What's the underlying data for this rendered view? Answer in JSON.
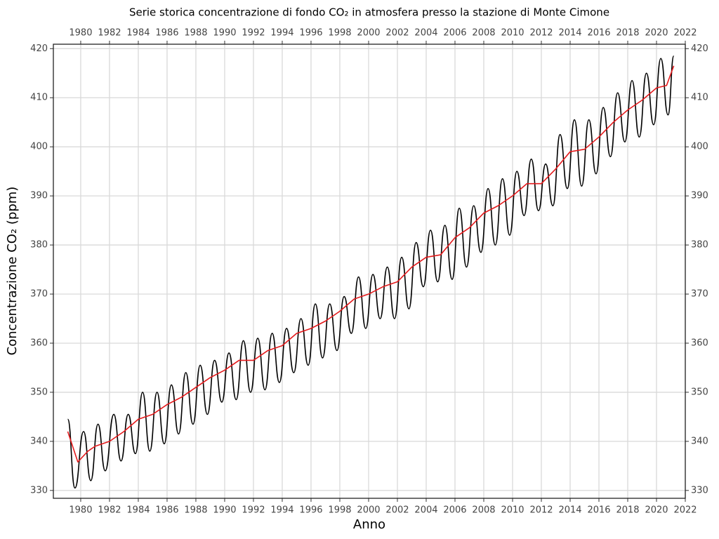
{
  "chart_data": {
    "type": "line",
    "title": "Serie storica concentrazione di fondo CO₂ in atmosfera presso la stazione di Monte Cimone",
    "x_label": "Anno",
    "y_label": "Concentrazione CO₂ (ppm)",
    "xlim": [
      1978.1,
      2022.0
    ],
    "ylim": [
      328.4,
      420.9
    ],
    "xticks": [
      1980,
      1982,
      1984,
      1986,
      1988,
      1990,
      1992,
      1994,
      1996,
      1998,
      2000,
      2002,
      2004,
      2006,
      2008,
      2010,
      2012,
      2014,
      2016,
      2018,
      2020,
      2022
    ],
    "yticks": [
      330,
      340,
      350,
      360,
      370,
      380,
      390,
      400,
      410,
      420
    ],
    "grid": true,
    "series": [
      {
        "color": "#000000",
        "x": [
          1979.1,
          1979.6,
          1980.2,
          1980.7,
          1981.2,
          1981.7,
          1982.3,
          1982.8,
          1983.3,
          1983.8,
          1984.3,
          1984.8,
          1985.3,
          1985.8,
          1986.3,
          1986.8,
          1987.3,
          1987.8,
          1988.3,
          1988.8,
          1989.3,
          1989.8,
          1990.3,
          1990.8,
          1991.3,
          1991.8,
          1992.3,
          1992.8,
          1993.3,
          1993.8,
          1994.3,
          1994.8,
          1995.3,
          1995.8,
          1996.3,
          1996.8,
          1997.3,
          1997.8,
          1998.3,
          1998.8,
          1999.3,
          1999.8,
          2000.3,
          2000.8,
          2001.3,
          2001.8,
          2002.3,
          2002.8,
          2003.3,
          2003.8,
          2004.3,
          2004.8,
          2005.3,
          2005.8,
          2006.3,
          2006.8,
          2007.3,
          2007.8,
          2008.3,
          2008.8,
          2009.3,
          2009.8,
          2010.3,
          2010.8,
          2011.3,
          2011.8,
          2012.3,
          2012.8,
          2013.3,
          2013.8,
          2014.3,
          2014.8,
          2015.3,
          2015.8,
          2016.3,
          2016.8,
          2017.3,
          2017.8,
          2018.3,
          2018.8,
          2019.3,
          2019.8,
          2020.3,
          2020.8,
          2021.2
        ],
        "values": [
          344.5,
          330.5,
          342,
          332,
          343.5,
          334,
          345.5,
          336,
          345.5,
          337.5,
          350,
          338,
          350,
          339.5,
          351.5,
          341.5,
          354,
          343.5,
          355.5,
          345.5,
          356.5,
          348,
          358,
          348.5,
          360.5,
          350,
          361,
          350.5,
          362,
          352,
          363,
          354,
          365,
          355.5,
          368,
          357,
          368,
          358.5,
          369.5,
          362,
          373.5,
          363,
          374,
          365,
          375.5,
          365,
          377.5,
          367,
          380.5,
          371.5,
          383,
          372.5,
          384,
          373,
          387.5,
          375.5,
          388,
          378.5,
          391.5,
          380,
          393.5,
          382,
          395,
          386,
          397.5,
          387,
          396.5,
          388,
          402.5,
          391.5,
          405.5,
          392,
          405.5,
          394.5,
          408,
          398,
          411,
          401,
          413.5,
          402,
          415,
          404.5,
          418,
          406.5,
          418.5
        ]
      },
      {
        "color": "#e41a1c",
        "x": [
          1979.1,
          1979.8,
          1980.5,
          1981,
          1982,
          1983,
          1984,
          1985,
          1986,
          1987,
          1988,
          1989,
          1990,
          1991,
          1992,
          1993,
          1994,
          1995,
          1996,
          1997,
          1998,
          1999,
          2000,
          2001,
          2002,
          2003,
          2004,
          2005,
          2006,
          2007,
          2008,
          2009,
          2010,
          2011,
          2012,
          2013,
          2014,
          2015,
          2016,
          2017,
          2018,
          2019,
          2020,
          2020.7,
          2021.2
        ],
        "values": [
          342,
          335.8,
          338,
          339,
          340,
          342,
          344.5,
          345.5,
          347.5,
          349,
          351,
          353,
          354.5,
          356.5,
          356.5,
          358.5,
          359.5,
          362,
          363,
          364.5,
          366.5,
          369,
          370,
          371.5,
          372.5,
          375.5,
          377.5,
          378,
          381.5,
          383.5,
          386.5,
          388,
          390,
          392.5,
          392.5,
          395.5,
          399,
          399.5,
          402,
          405,
          407.5,
          409.5,
          412,
          412.5,
          416.5
        ]
      }
    ]
  }
}
